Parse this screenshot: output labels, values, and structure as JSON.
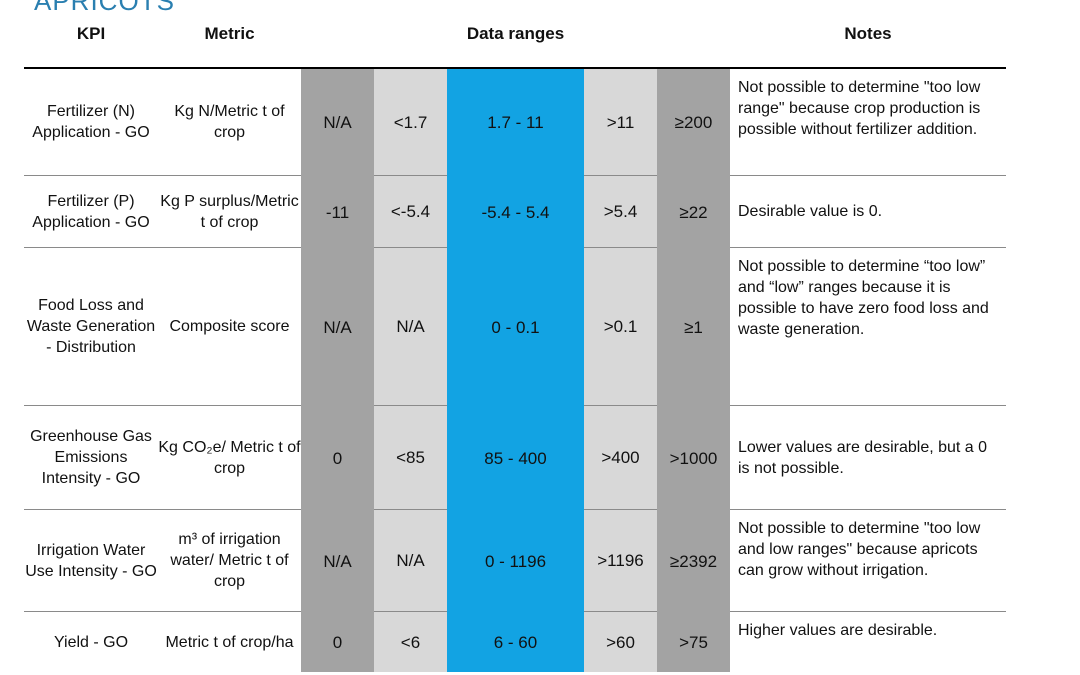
{
  "heading": "APRICOTS",
  "header": {
    "kpi": "KPI",
    "metric": "Metric",
    "ranges": "Data ranges",
    "notes": "Notes"
  },
  "rows": [
    {
      "kpi": "Fertilizer (N) Application - GO",
      "metric": "Kg N/Metric t of crop",
      "ranges": [
        "N/A",
        "<1.7",
        "1.7 - 11",
        ">11",
        "≥200"
      ],
      "notes": "Not possible to determine \"too low range\" because crop production is possible without fertilizer addition."
    },
    {
      "kpi": "Fertilizer (P) Application - GO",
      "metric": "Kg P surplus/Metric t of crop",
      "ranges": [
        "-11",
        "<-5.4",
        "-5.4 - 5.4",
        ">5.4",
        "≥22"
      ],
      "notes": "Desirable value is 0."
    },
    {
      "kpi": "Food Loss and Waste Generation - Distribution",
      "metric": "Composite score",
      "ranges": [
        "N/A",
        "N/A",
        "0 - 0.1",
        ">0.1",
        "≥1"
      ],
      "notes": "Not possible to determine “too low” and “low” ranges because it is possible to have zero food loss and waste generation."
    },
    {
      "kpi": "Greenhouse Gas Emissions Intensity - GO",
      "metric": "Kg CO₂e/ Metric t of crop",
      "ranges": [
        "0",
        "<85",
        "85 - 400",
        ">400",
        ">1000"
      ],
      "notes": "Lower values are desirable, but a 0 is not possible."
    },
    {
      "kpi": "Irrigation Water Use Intensity - GO",
      "metric": "m³ of irrigation water/ Metric t of crop",
      "ranges": [
        "N/A",
        "N/A",
        "0 - 1196",
        ">1196",
        "≥2392"
      ],
      "notes": "Not possible to determine \"too low and low ranges\" because apricots can grow without irrigation."
    },
    {
      "kpi": "Yield - GO",
      "metric": "Metric t of crop/ha",
      "ranges": [
        "0",
        "<6",
        "6 - 60",
        ">60",
        ">75"
      ],
      "notes": "Higher values are desirable."
    }
  ]
}
